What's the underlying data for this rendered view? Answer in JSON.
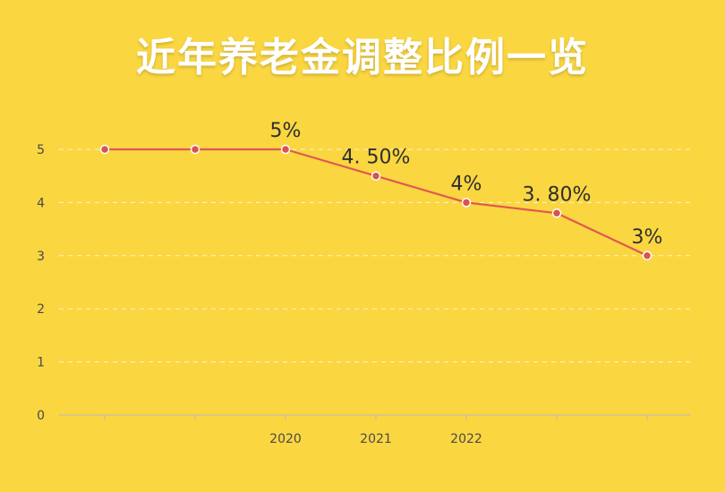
{
  "chart_data": {
    "type": "line",
    "title": "近年养老金调整比例一览",
    "categories": [
      "",
      "",
      "2020",
      "2021",
      "2022",
      "",
      ""
    ],
    "values": [
      5,
      5,
      5,
      4.5,
      4,
      3.8,
      3
    ],
    "data_labels": [
      "",
      "",
      "5%",
      "4. 50%",
      "4%",
      "3. 80%",
      "3%"
    ],
    "ylim": [
      0,
      5
    ],
    "yticks": [
      0,
      1,
      2,
      3,
      4,
      5
    ],
    "grid": true,
    "line_color": "#E0584F",
    "marker_color": "#D9534F",
    "background_color": "#FAD641"
  }
}
